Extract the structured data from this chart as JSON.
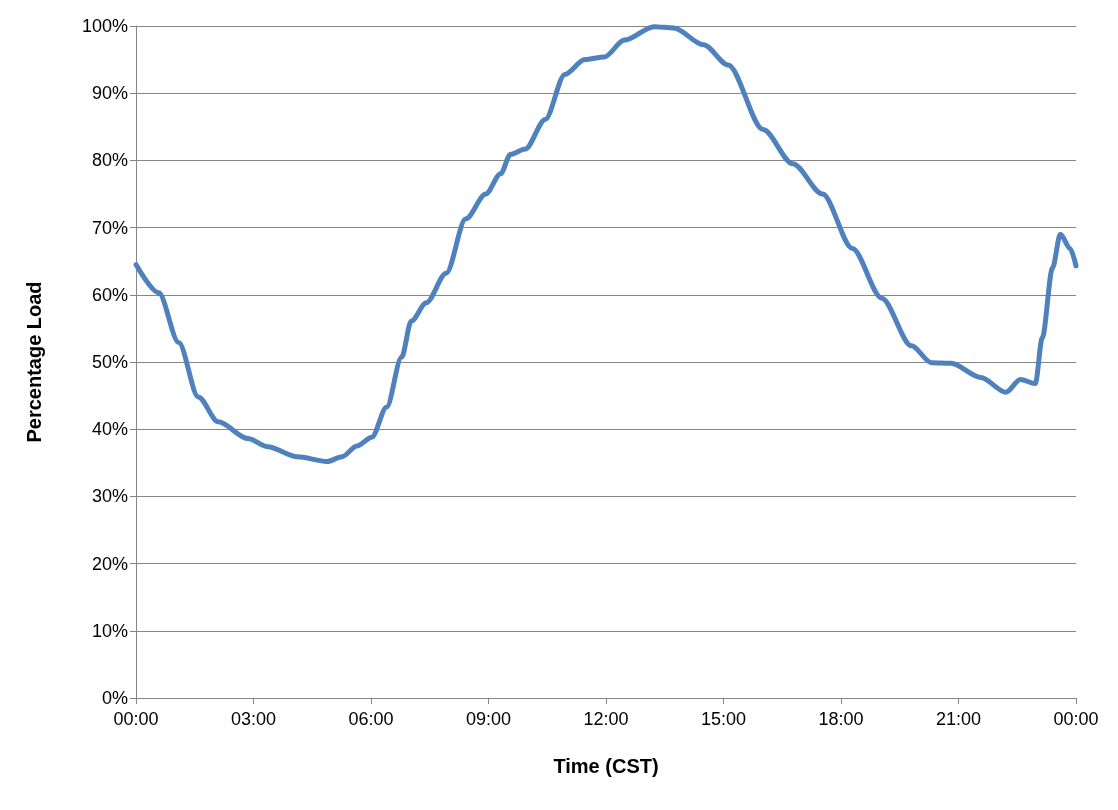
{
  "chart_data": {
    "type": "line",
    "xlabel": "Time (CST)",
    "ylabel": "Percentage Load",
    "x": [
      0,
      0.58,
      1.09,
      1.59,
      2.1,
      2.86,
      3.36,
      4.12,
      4.88,
      5.26,
      5.64,
      6.02,
      6.4,
      6.78,
      7.03,
      7.41,
      7.92,
      8.42,
      8.93,
      9.31,
      9.56,
      9.94,
      10.45,
      10.95,
      11.46,
      11.96,
      12.47,
      13.23,
      13.73,
      14.49,
      15.12,
      16.01,
      16.77,
      17.53,
      18.29,
      19.04,
      19.8,
      20.31,
      20.81,
      21.57,
      22.21,
      22.58,
      22.96,
      23.14,
      23.4,
      23.6,
      23.85,
      24
    ],
    "series": [
      {
        "color": "#4f81bd",
        "values": [
          64.5,
          60.3,
          52.9,
          44.8,
          41.1,
          38.6,
          37.4,
          35.9,
          35.2,
          35.9,
          37.5,
          38.8,
          43.3,
          50.7,
          56.1,
          58.8,
          63.2,
          71.3,
          75.0,
          78.0,
          80.9,
          81.7,
          86.1,
          92.8,
          95.0,
          95.4,
          97.9,
          99.9,
          99.7,
          97.2,
          94.2,
          84.6,
          79.5,
          75.0,
          66.9,
          59.5,
          52.4,
          49.9,
          49.8,
          47.7,
          45.5,
          47.4,
          46.8,
          53.6,
          64.0,
          69.0,
          66.9,
          64.3
        ]
      }
    ],
    "xlim": [
      0,
      24
    ],
    "xticks": [
      {
        "value": 0,
        "label": "00:00"
      },
      {
        "value": 3,
        "label": "03:00"
      },
      {
        "value": 6,
        "label": "06:00"
      },
      {
        "value": 9,
        "label": "09:00"
      },
      {
        "value": 12,
        "label": "12:00"
      },
      {
        "value": 15,
        "label": "15:00"
      },
      {
        "value": 18,
        "label": "18:00"
      },
      {
        "value": 21,
        "label": "21:00"
      },
      {
        "value": 24,
        "label": "00:00"
      }
    ],
    "ylim": [
      0,
      100
    ],
    "yticks": [
      {
        "value": 0,
        "label": "0%"
      },
      {
        "value": 10,
        "label": "10%"
      },
      {
        "value": 20,
        "label": "20%"
      },
      {
        "value": 30,
        "label": "30%"
      },
      {
        "value": 40,
        "label": "40%"
      },
      {
        "value": 50,
        "label": "50%"
      },
      {
        "value": 60,
        "label": "60%"
      },
      {
        "value": 70,
        "label": "70%"
      },
      {
        "value": 80,
        "label": "80%"
      },
      {
        "value": 90,
        "label": "90%"
      },
      {
        "value": 100,
        "label": "100%"
      }
    ],
    "grid": "y",
    "marker": "none",
    "line_style": "solid"
  }
}
